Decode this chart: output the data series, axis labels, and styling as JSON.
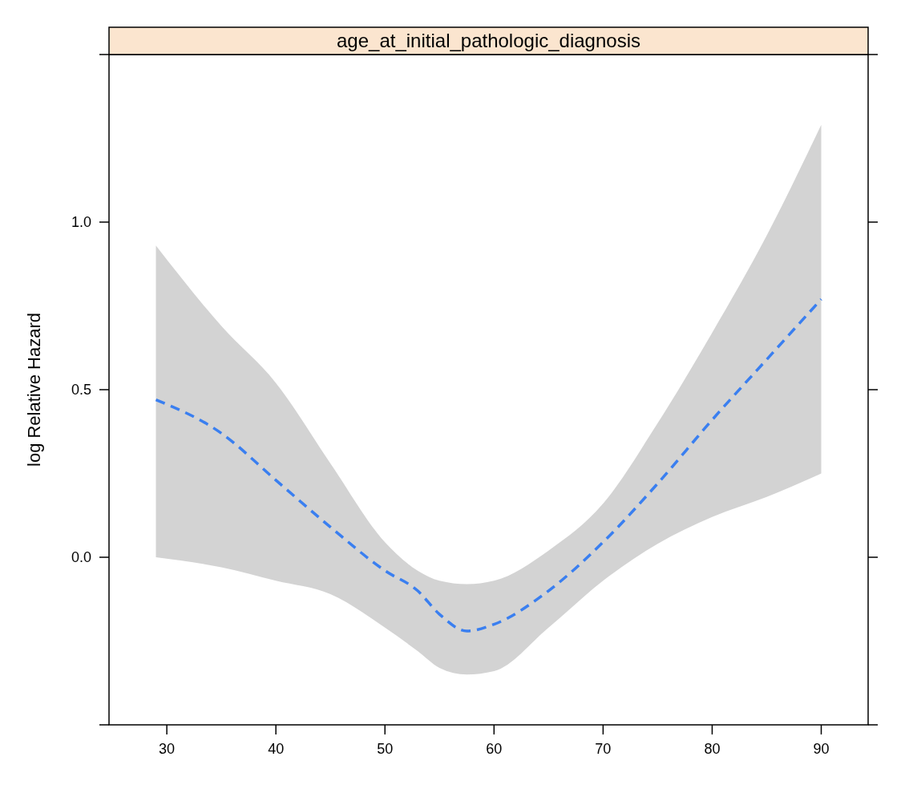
{
  "chart_data": {
    "type": "line",
    "title": "age_at_initial_pathologic_diagnosis",
    "ylabel": "log Relative Hazard",
    "xlim": [
      24.7,
      94.3
    ],
    "ylim": [
      -0.5,
      1.5
    ],
    "xticks": [
      30,
      40,
      50,
      60,
      70,
      80,
      90
    ],
    "yticks": [
      {
        "value": 0,
        "label": "0.0"
      },
      0.5,
      {
        "value": 1,
        "label": "1.0"
      }
    ],
    "marker": "none",
    "line_style": "dashed",
    "series": [
      {
        "color": "#3a7ff0",
        "x": [
          29,
          35,
          40,
          45,
          50,
          53,
          55,
          57.5,
          60,
          65,
          70,
          75,
          80,
          85,
          90
        ],
        "values": [
          0.47,
          0.37,
          0.23,
          0.09,
          -0.04,
          -0.1,
          -0.17,
          -0.22,
          -0.2,
          -0.1,
          0.045,
          0.22,
          0.41,
          0.59,
          0.77
        ],
        "lower": [
          0,
          -0.03,
          -0.07,
          -0.11,
          -0.21,
          -0.28,
          -0.33,
          -0.35,
          -0.34,
          -0.21,
          -0.07,
          0.04,
          0.12,
          0.18,
          0.25
        ],
        "upper": [
          0.93,
          0.69,
          0.52,
          0.28,
          0.045,
          -0.04,
          -0.07,
          -0.08,
          -0.07,
          0.02,
          0.16,
          0.4,
          0.67,
          0.96,
          1.29
        ]
      }
    ]
  }
}
